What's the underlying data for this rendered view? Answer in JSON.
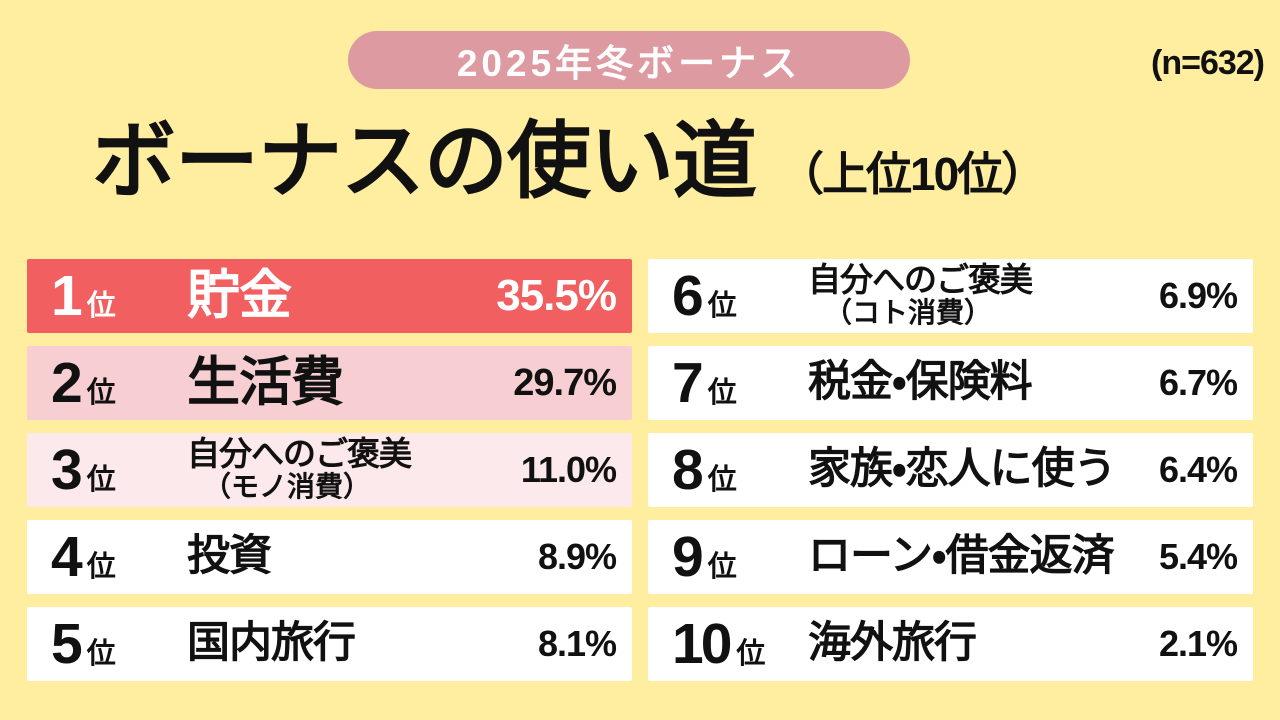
{
  "header": {
    "badge": "2025年冬ボーナス",
    "sample_size": "(n=632)",
    "title": "ボーナスの使い道",
    "subtitle": "（上位10位）"
  },
  "colors": {
    "page_bg": "#FFEEA0",
    "badge_bg": "#DD9AA0",
    "rank1_bg": "#F25F60",
    "rank2_bg": "#F7CFD2",
    "rank3_bg": "#FBE9EB",
    "row_bg": "#FFFFFF",
    "ink": "#111111",
    "rank1_text": "#FFFFFF"
  },
  "ranking": [
    {
      "rank": "1",
      "suffix": "位",
      "label": "貯金",
      "sublabel": "",
      "value": "35.5%"
    },
    {
      "rank": "2",
      "suffix": "位",
      "label": "生活費",
      "sublabel": "",
      "value": "29.7%"
    },
    {
      "rank": "3",
      "suffix": "位",
      "label": "自分へのご褒美",
      "sublabel": "（モノ消費）",
      "value": "11.0%"
    },
    {
      "rank": "4",
      "suffix": "位",
      "label": "投資",
      "sublabel": "",
      "value": "8.9%"
    },
    {
      "rank": "5",
      "suffix": "位",
      "label": "国内旅行",
      "sublabel": "",
      "value": "8.1%"
    },
    {
      "rank": "6",
      "suffix": "位",
      "label": "自分へのご褒美",
      "sublabel": "（コト消費）",
      "value": "6.9%"
    },
    {
      "rank": "7",
      "suffix": "位",
      "label": "税金・保険料",
      "sublabel": "",
      "value": "6.7%"
    },
    {
      "rank": "8",
      "suffix": "位",
      "label": "家族・恋人に使う",
      "sublabel": "",
      "value": "6.4%"
    },
    {
      "rank": "9",
      "suffix": "位",
      "label": "ローン・借金返済",
      "sublabel": "",
      "value": "5.4%"
    },
    {
      "rank": "10",
      "suffix": "位",
      "label": "海外旅行",
      "sublabel": "",
      "value": "2.1%"
    }
  ],
  "chart_data": {
    "type": "table",
    "title": "ボーナスの使い道（上位10位）",
    "subtitle": "2025年冬ボーナス",
    "sample_size": 632,
    "unit": "%",
    "categories": [
      "貯金",
      "生活費",
      "自分へのご褒美（モノ消費）",
      "投資",
      "国内旅行",
      "自分へのご褒美（コト消費）",
      "税金・保険料",
      "家族・恋人に使う",
      "ローン・借金返済",
      "海外旅行"
    ],
    "values": [
      35.5,
      29.7,
      11.0,
      8.9,
      8.1,
      6.9,
      6.7,
      6.4,
      5.4,
      2.1
    ],
    "layout": {
      "columns": 2,
      "rows_per_column": 5,
      "legend": "none",
      "grid": "off"
    }
  }
}
